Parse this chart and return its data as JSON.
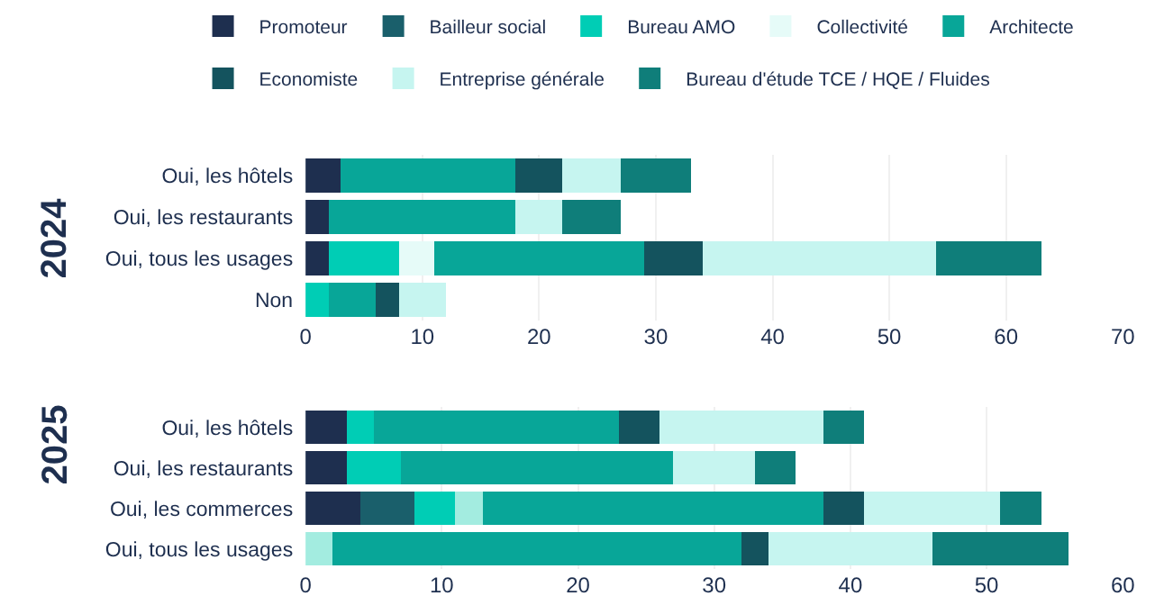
{
  "chart_data": [
    {
      "type": "bar",
      "orientation": "horizontal",
      "stacked": true,
      "ylabel": "2024",
      "categories": [
        "Oui, les hôtels",
        "Oui, les restaurants",
        "Oui, tous les usages",
        "Non"
      ],
      "xlim": [
        0,
        70
      ],
      "xticks": [
        0,
        10,
        20,
        30,
        40,
        50,
        60,
        70
      ],
      "grid": "x",
      "legend": "top",
      "series": [
        {
          "name": "Promoteur",
          "color": "#1e2f4f",
          "values": [
            3,
            2,
            2,
            null
          ]
        },
        {
          "name": "Bailleur social",
          "color": "#1a5f6b",
          "values": [
            null,
            null,
            null,
            null
          ]
        },
        {
          "name": "Bureau AMO",
          "color": "#00cdb5",
          "values": [
            null,
            null,
            6,
            2
          ]
        },
        {
          "name": "Collectivité",
          "color": "#e6fbf8",
          "values": [
            null,
            null,
            3,
            null
          ]
        },
        {
          "name": "Architecte",
          "color": "#08a698",
          "values": [
            15,
            16,
            18,
            4
          ]
        },
        {
          "name": "Economiste",
          "color": "#14535e",
          "values": [
            4,
            null,
            5,
            2
          ]
        },
        {
          "name": "Entreprise générale",
          "color": "#c6f5f0",
          "values": [
            5,
            4,
            20,
            4
          ]
        },
        {
          "name": "Bureau d'étude TCE / HQE / Fluides",
          "color": "#0f7e7a",
          "values": [
            6,
            5,
            9,
            null
          ]
        }
      ]
    },
    {
      "type": "bar",
      "orientation": "horizontal",
      "stacked": true,
      "ylabel": "2025",
      "categories": [
        "Oui, les hôtels",
        "Oui, les restaurants",
        "Oui, les commerces",
        "Oui, tous les usages"
      ],
      "xlim": [
        0,
        60
      ],
      "xticks": [
        0,
        10,
        20,
        30,
        40,
        50,
        60
      ],
      "grid": "x",
      "legend": false,
      "series": [
        {
          "color": "#1e2f4f",
          "values": [
            3,
            3,
            4,
            null
          ]
        },
        {
          "color": "#1a5f6b",
          "values": [
            null,
            null,
            4,
            null
          ]
        },
        {
          "color": "#00cdb5",
          "values": [
            2,
            4,
            3,
            null
          ]
        },
        {
          "color": "#a3ece0",
          "values": [
            null,
            null,
            2,
            2
          ]
        },
        {
          "color": "#08a698",
          "values": [
            18,
            20,
            25,
            30
          ]
        },
        {
          "color": "#14535e",
          "values": [
            3,
            null,
            3,
            2
          ]
        },
        {
          "color": "#c6f5f0",
          "values": [
            12,
            6,
            10,
            12
          ]
        },
        {
          "color": "#0f7e7a",
          "values": [
            3,
            3,
            3,
            10
          ]
        }
      ]
    }
  ]
}
